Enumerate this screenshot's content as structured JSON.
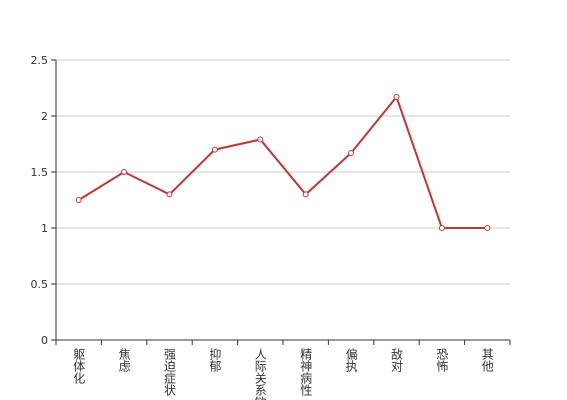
{
  "chart_data": {
    "type": "line",
    "categories": [
      "躯体化",
      "焦虑",
      "强迫症状",
      "抑郁",
      "人际关系敏感",
      "精神病性",
      "偏执",
      "敌对",
      "恐怖",
      "其他"
    ],
    "values": [
      1.25,
      1.5,
      1.3,
      1.7,
      1.79,
      1.3,
      1.67,
      2.17,
      1.0,
      1.0
    ],
    "color": "#c23531",
    "ylim": [
      0,
      2.5
    ],
    "yticks": [
      0,
      0.5,
      1,
      1.5,
      2,
      2.5
    ],
    "grid": true
  }
}
